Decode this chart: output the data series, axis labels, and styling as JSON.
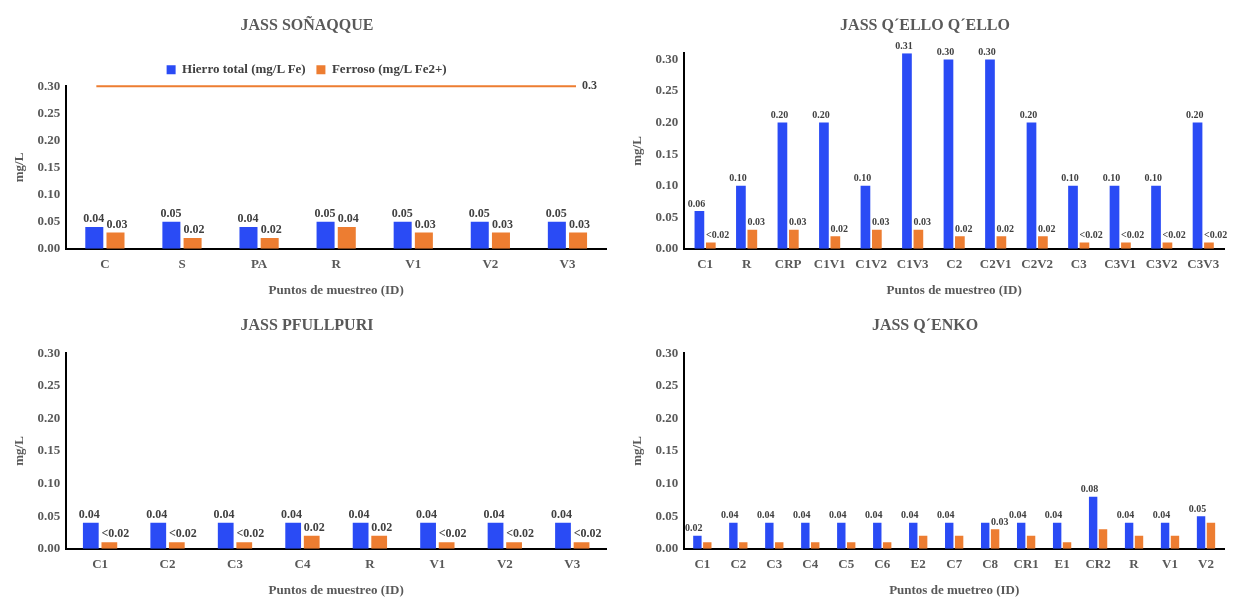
{
  "chart_data": [
    {
      "type": "bar",
      "title": "JASS SOÑAQQUE",
      "xlabel": "Puntos de muestreo (ID)",
      "ylabel": "mg/L",
      "categories": [
        "C",
        "S",
        "PA",
        "R",
        "V1",
        "V2",
        "V3"
      ],
      "series": [
        {
          "name": "Hierro total (mg/L Fe)",
          "color": "#2a4bf5",
          "values": [
            0.04,
            0.05,
            0.04,
            0.05,
            0.05,
            0.05,
            0.05
          ],
          "value_labels": [
            "0.04",
            "0.05",
            "0.04",
            "0.05",
            "0.05",
            "0.05",
            "0.05"
          ]
        },
        {
          "name": "Ferroso (mg/L Fe2+)",
          "color": "#ed7d31",
          "values": [
            0.03,
            0.02,
            0.02,
            0.04,
            0.03,
            0.03,
            0.03
          ],
          "value_labels": [
            "0.03",
            "0.02",
            "0.02",
            "0.04",
            "0.03",
            "0.03",
            "0.03"
          ]
        }
      ],
      "ylim": [
        0,
        0.3
      ],
      "yticks": [
        {
          "value": 0,
          "label": "0.00"
        },
        {
          "value": 0.05,
          "label": "0.05"
        },
        {
          "value": 0.1,
          "label": "0.10"
        },
        {
          "value": 0.15,
          "label": "0.15"
        },
        {
          "value": 0.2,
          "label": "0.20"
        },
        {
          "value": 0.25,
          "label": "0.25"
        },
        {
          "value": 0.3,
          "label": "0.30"
        }
      ],
      "ref_lines": [
        {
          "axis": "y",
          "value": 0.3,
          "label": "0.3",
          "color": "#ed7d31"
        }
      ],
      "grid": false,
      "legend": "top"
    },
    {
      "type": "bar",
      "title": "JASS Q´ELLO Q´ELLO",
      "xlabel": "Puntos de muestreo (ID)",
      "ylabel": "mg/L",
      "categories": [
        "C1",
        "R",
        "CRP",
        "C1V1",
        "C1V2",
        "C1V3",
        "C2",
        "C2V1",
        "C2V2",
        "C3",
        "C3V1",
        "C3V2",
        "C3V3"
      ],
      "series": [
        {
          "color": "#2a4bf5",
          "values": [
            0.06,
            0.1,
            0.2,
            0.2,
            0.1,
            0.31,
            0.3,
            0.3,
            0.2,
            0.1,
            0.1,
            0.1,
            0.2
          ],
          "value_labels": [
            "0.06",
            "0.10",
            "0.20",
            "0.20",
            "0.10",
            "0.31",
            "0.30",
            "0.30",
            "0.20",
            "0.10",
            "0.10",
            "0.10",
            "0.20"
          ]
        },
        {
          "color": "#ed7d31",
          "values": [
            0.01,
            0.03,
            0.03,
            0.02,
            0.03,
            0.03,
            0.02,
            0.02,
            0.02,
            0.01,
            0.01,
            0.01,
            0.01
          ],
          "value_labels": [
            "<0.02",
            "0.03",
            "0.03",
            "0.02",
            "0.03",
            "0.03",
            "0.02",
            "0.02",
            "0.02",
            "<0.02",
            "<0.02",
            "<0.02",
            "<0.02"
          ]
        }
      ],
      "ylim": [
        0,
        0.31
      ],
      "yticks": [
        {
          "value": 0,
          "label": "0.00"
        },
        {
          "value": 0.05,
          "label": "0.05"
        },
        {
          "value": 0.1,
          "label": "0.10"
        },
        {
          "value": 0.15,
          "label": "0.15"
        },
        {
          "value": 0.2,
          "label": "0.20"
        },
        {
          "value": 0.25,
          "label": "0.25"
        },
        {
          "value": 0.3,
          "label": "0.30"
        }
      ],
      "grid": false,
      "legend": false
    },
    {
      "type": "bar",
      "title": "JASS PFULLPURI",
      "xlabel": "Puntos de muestreo (ID)",
      "ylabel": "mg/L",
      "categories": [
        "C1",
        "C2",
        "C3",
        "C4",
        "R",
        "V1",
        "V2",
        "V3"
      ],
      "series": [
        {
          "color": "#2a4bf5",
          "values": [
            0.04,
            0.04,
            0.04,
            0.04,
            0.04,
            0.04,
            0.04,
            0.04
          ],
          "value_labels": [
            "0.04",
            "0.04",
            "0.04",
            "0.04",
            "0.04",
            "0.04",
            "0.04",
            "0.04"
          ]
        },
        {
          "color": "#ed7d31",
          "values": [
            0.01,
            0.01,
            0.01,
            0.02,
            0.02,
            0.01,
            0.01,
            0.01
          ],
          "value_labels": [
            "<0.02",
            "<0.02",
            "<0.02",
            "0.02",
            "0.02",
            "<0.02",
            "<0.02",
            "<0.02"
          ]
        }
      ],
      "ylim": [
        0,
        0.3
      ],
      "yticks": [
        {
          "value": 0,
          "label": "0.00"
        },
        {
          "value": 0.05,
          "label": "0.05"
        },
        {
          "value": 0.1,
          "label": "0.10"
        },
        {
          "value": 0.15,
          "label": "0.15"
        },
        {
          "value": 0.2,
          "label": "0.20"
        },
        {
          "value": 0.25,
          "label": "0.25"
        },
        {
          "value": 0.3,
          "label": "0.30"
        }
      ],
      "grid": false,
      "legend": false
    },
    {
      "type": "bar",
      "title": "JASS Q´ENKO",
      "xlabel": "Puntos de muetreo (ID)",
      "ylabel": "mg/L",
      "categories": [
        "C1",
        "C2",
        "C3",
        "C4",
        "C5",
        "C6",
        "E2",
        "C7",
        "C8",
        "CR1",
        "E1",
        "CR2",
        "R",
        "V1",
        "V2"
      ],
      "series": [
        {
          "color": "#2a4bf5",
          "values": [
            0.02,
            0.04,
            0.04,
            0.04,
            0.04,
            0.04,
            0.04,
            0.04,
            0.04,
            0.04,
            0.04,
            0.08,
            0.04,
            0.04,
            0.05
          ],
          "value_labels": [
            "0.02",
            "0.04",
            "0.04",
            "0.04",
            "0.04",
            "0.04",
            "0.04",
            "0.04",
            null,
            "0.04",
            "0.04",
            "0.08",
            "0.04",
            "0.04",
            "0.05"
          ]
        },
        {
          "color": "#ed7d31",
          "values": [
            0.01,
            0.01,
            0.01,
            0.01,
            0.01,
            0.01,
            0.02,
            0.02,
            0.03,
            0.02,
            0.01,
            0.03,
            0.02,
            0.02,
            0.04
          ],
          "value_labels": [
            null,
            null,
            null,
            null,
            null,
            null,
            null,
            null,
            "0.03",
            null,
            null,
            null,
            null,
            null,
            null
          ]
        }
      ],
      "ylim": [
        0,
        0.3
      ],
      "yticks": [
        {
          "value": 0,
          "label": "0.00"
        },
        {
          "value": 0.05,
          "label": "0.05"
        },
        {
          "value": 0.1,
          "label": "0.10"
        },
        {
          "value": 0.15,
          "label": "0.15"
        },
        {
          "value": 0.2,
          "label": "0.20"
        },
        {
          "value": 0.25,
          "label": "0.25"
        },
        {
          "value": 0.3,
          "label": "0.30"
        }
      ],
      "grid": false,
      "legend": false
    }
  ]
}
